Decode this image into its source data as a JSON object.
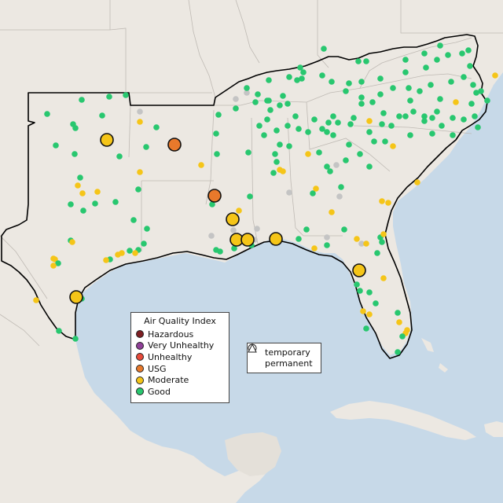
{
  "colors": {
    "water": "#c7d9e8",
    "land": "#ece8e2",
    "region_outline": "#000000",
    "state_border": "#bfbab4"
  },
  "legend": {
    "title": "Air Quality Index",
    "categories": [
      {
        "label": "Hazardous",
        "color": "#7e1f23"
      },
      {
        "label": "Very Unhealthy",
        "color": "#8f3f97"
      },
      {
        "label": "Unhealthy",
        "color": "#e84a3a"
      },
      {
        "label": "USG",
        "color": "#e8792b"
      },
      {
        "label": "Moderate",
        "color": "#f5c518"
      },
      {
        "label": "Good",
        "color": "#28c76f"
      }
    ],
    "no_data_color": "#c4c4c4"
  },
  "shape_legend": {
    "temporary": "temporary",
    "permanent": "permanent"
  },
  "large_markers": [
    {
      "category": "Moderate"
    },
    {
      "category": "USG"
    },
    {
      "category": "USG"
    },
    {
      "category": "Moderate"
    },
    {
      "category": "Moderate"
    },
    {
      "category": "Moderate"
    },
    {
      "category": "Moderate"
    },
    {
      "category": "Moderate"
    },
    {
      "category": "Moderate"
    }
  ]
}
